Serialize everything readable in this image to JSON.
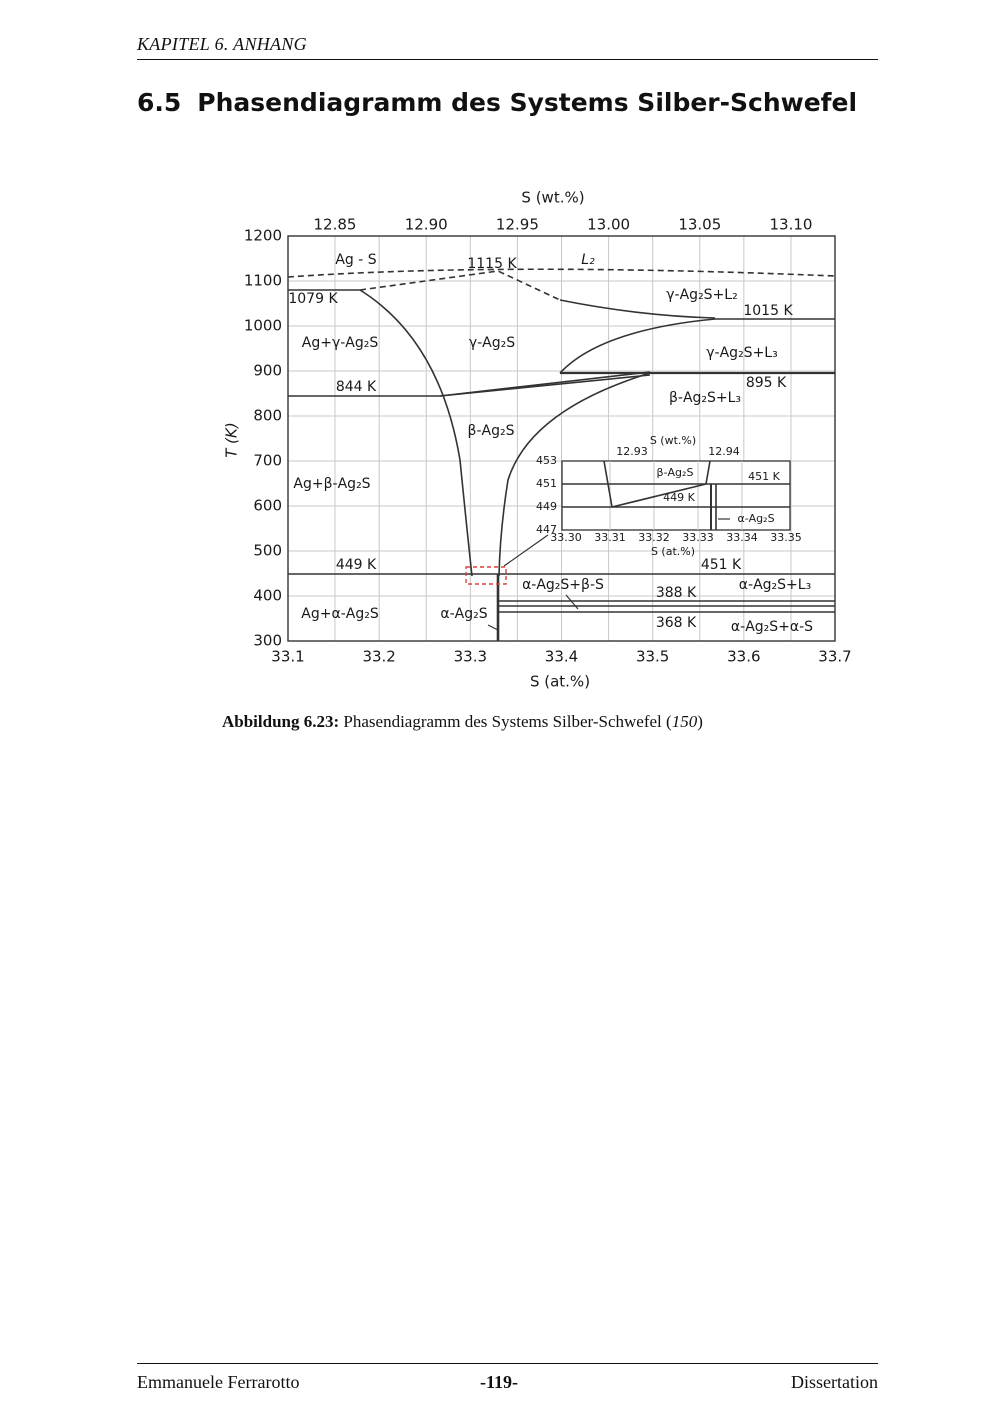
{
  "header": {
    "running_title": "KAPITEL 6.  ANHANG"
  },
  "section": {
    "number": "6.5",
    "title": "Phasendiagramm des Systems Silber-Schwefel"
  },
  "figure": {
    "top_axis_label": "S (wt.%)",
    "top_ticks": [
      "12.85",
      "12.90",
      "12.95",
      "13.00",
      "13.05",
      "13.10"
    ],
    "y_axis_label": "T (K)",
    "y_ticks": [
      "1200",
      "1100",
      "1000",
      "900",
      "800",
      "700",
      "600",
      "500",
      "400",
      "300"
    ],
    "x_axis_label": "S (at.%)",
    "x_ticks": [
      "33.1",
      "33.2",
      "33.3",
      "33.4",
      "33.5",
      "33.6",
      "33.7"
    ],
    "region_labels": [
      "Ag - S",
      "1115 K",
      "L₂",
      "γ-Ag₂S+L₂",
      "1015 K",
      "1079 K",
      "Ag+γ-Ag₂S",
      "γ-Ag₂S",
      "γ-Ag₂S+L₃",
      "895 K",
      "844 K",
      "β-Ag₂S+L₃",
      "β-Ag₂S",
      "Ag+β-Ag₂S",
      "449 K",
      "451 K",
      "α-Ag₂S+β-S",
      "388 K",
      "α-Ag₂S+L₃",
      "Ag+α-Ag₂S",
      "α-Ag₂S",
      "368 K",
      "α-Ag₂S+α-S"
    ],
    "inset": {
      "top_axis_label": "S (wt.%)",
      "top_ticks": [
        "12.93",
        "12.94"
      ],
      "y_ticks": [
        "453",
        "451",
        "449",
        "447"
      ],
      "x_ticks": [
        "33.30",
        "33.31",
        "33.32",
        "33.33",
        "33.34",
        "33.35"
      ],
      "x_axis_label": "S (at.%)",
      "region_labels": [
        "β-Ag₂S",
        "451 K",
        "449 K",
        "α-Ag₂S"
      ]
    },
    "caption": {
      "label": "Abbildung 6.23:",
      "text_before": "Phasendiagramm des Systems Silber-Schwefel (",
      "ref": "150",
      "text_after": ")"
    }
  },
  "footer": {
    "author": "Emmanuele Ferrarotto",
    "page": "-119-",
    "type": "Dissertation"
  }
}
